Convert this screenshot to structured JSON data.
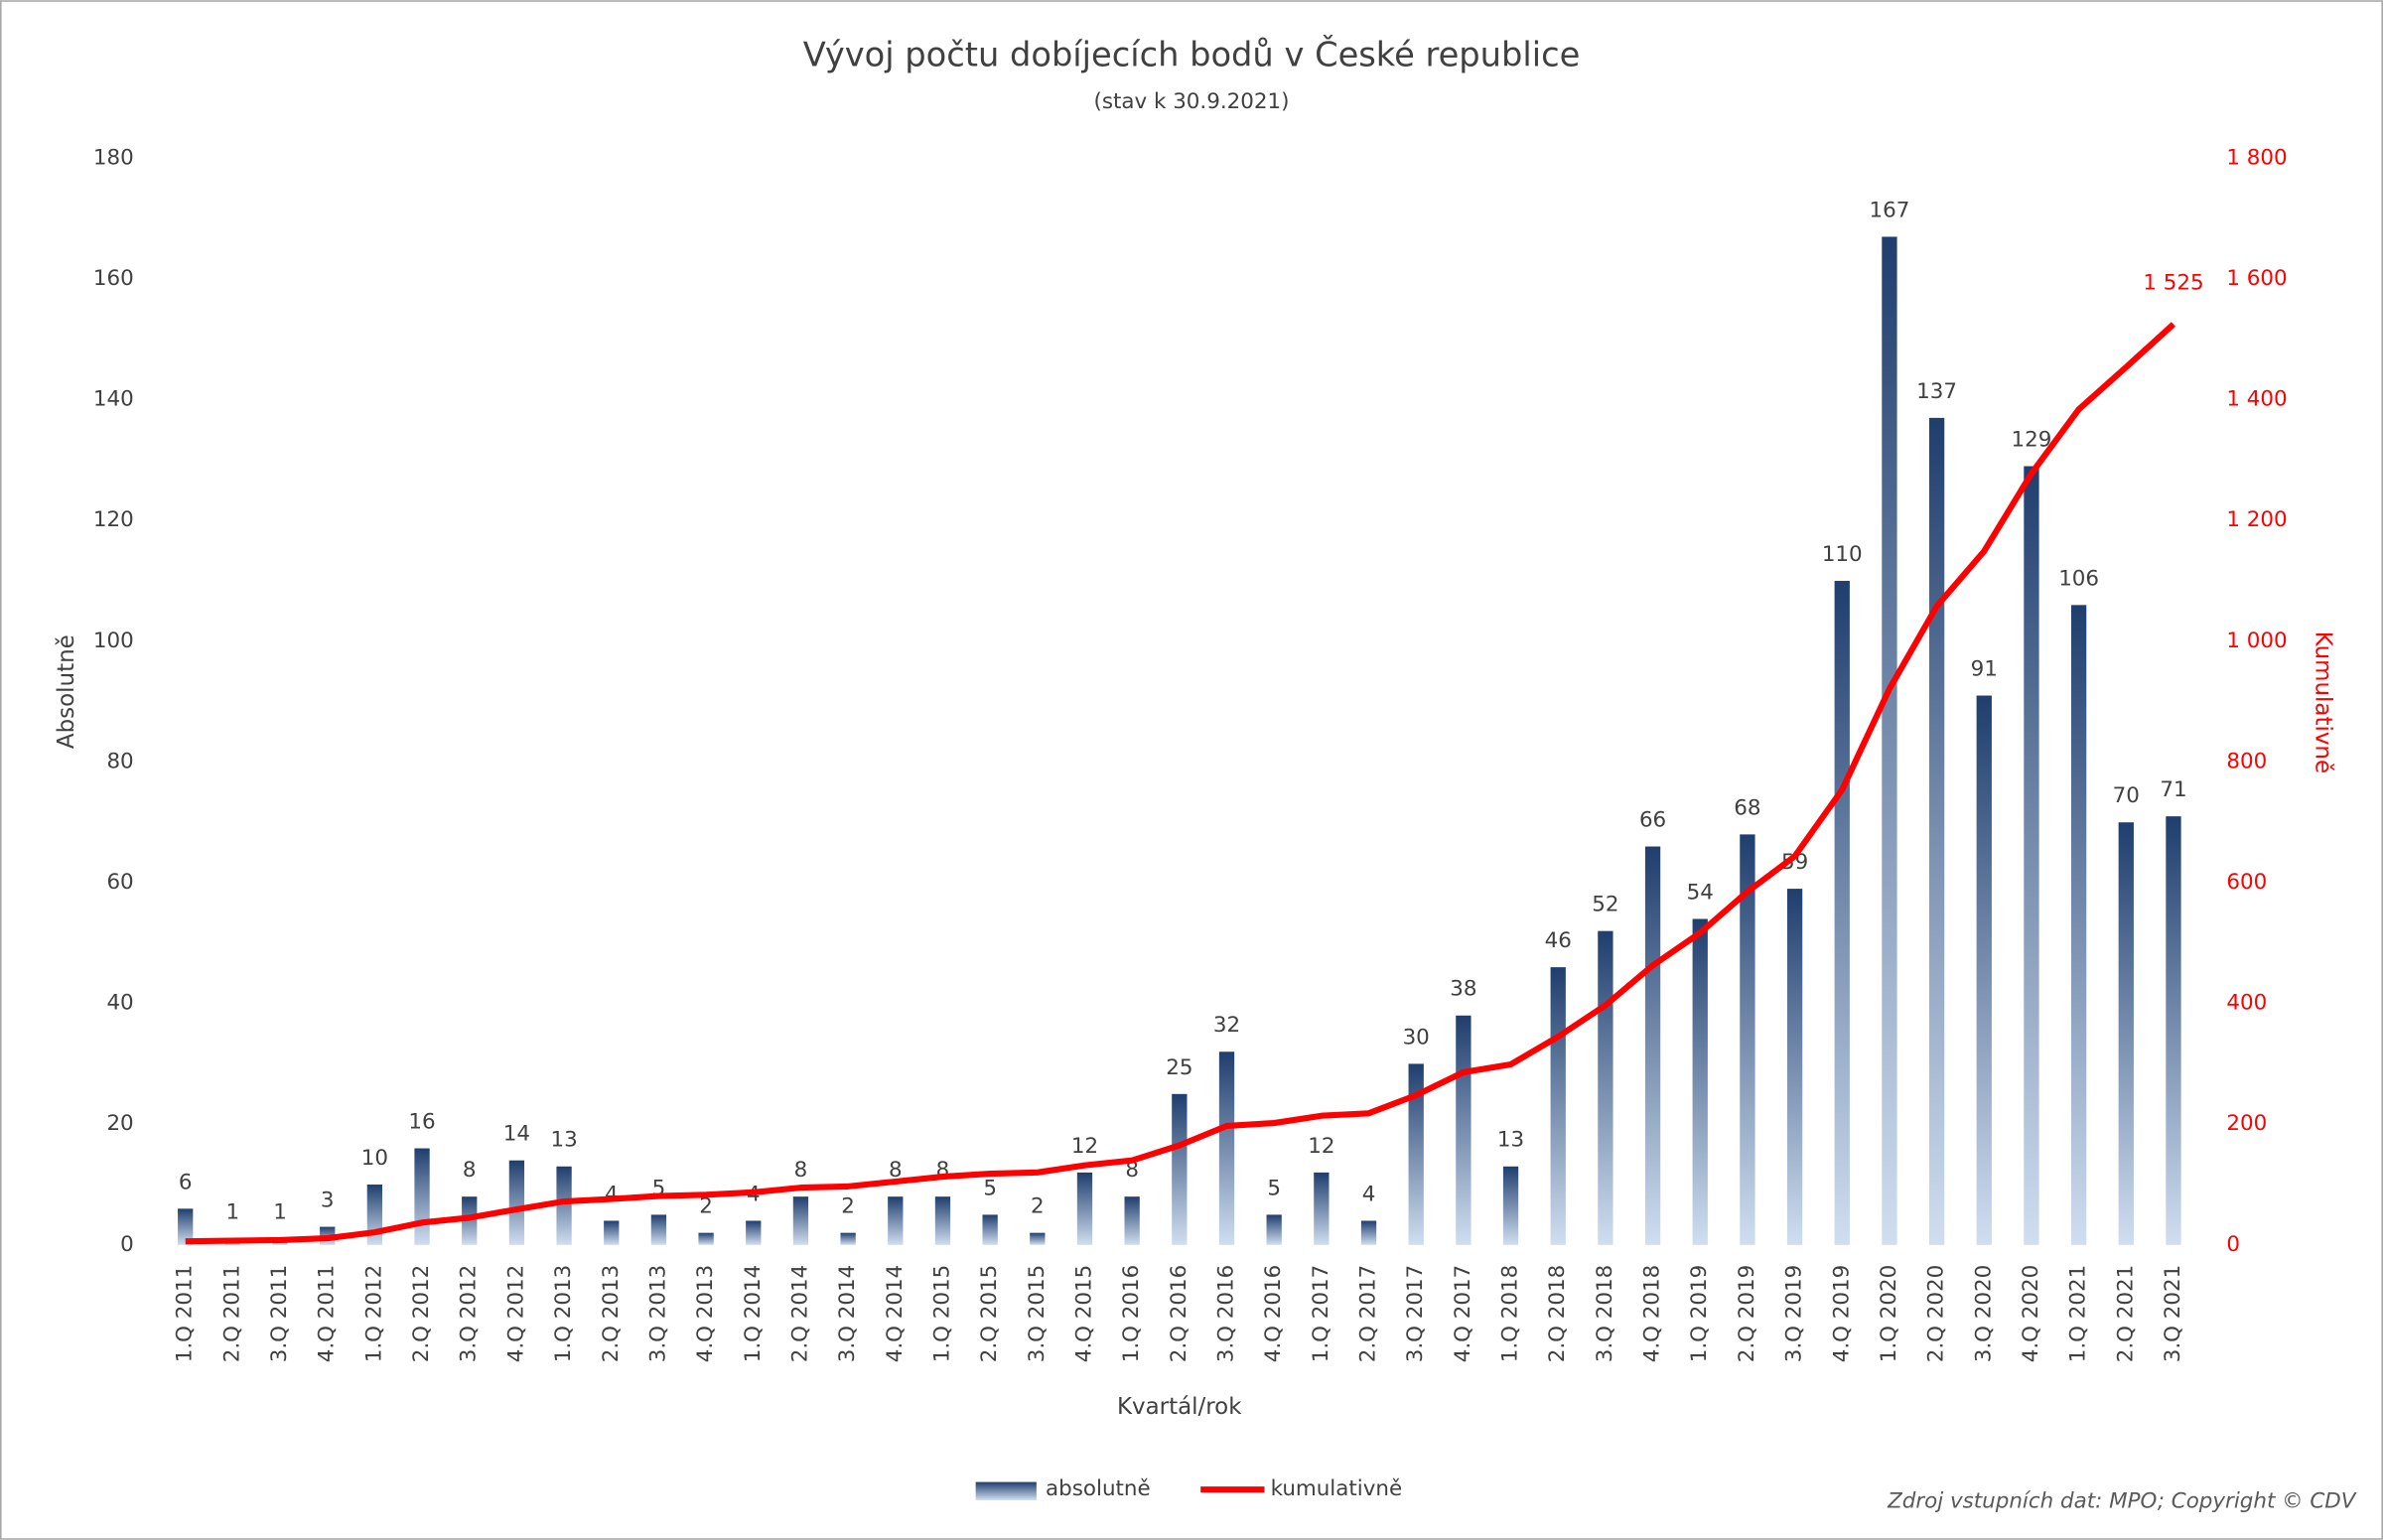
{
  "chart_data": {
    "type": "bar-line",
    "title": "Vývoj počtu dobíjecích bodů v České republice",
    "subtitle": "(stav k 30.9.2021)",
    "x_label": "Kvartál/rok",
    "y_label": "Absolutně",
    "y2_label": "Kumulativně",
    "source": "Zdroj vstupních dat: MPO; Copyright © CDV",
    "categories": [
      "1.Q 2011",
      "2.Q 2011",
      "3.Q 2011",
      "4.Q 2011",
      "1.Q 2012",
      "2.Q 2012",
      "3.Q 2012",
      "4.Q 2012",
      "1.Q 2013",
      "2.Q 2013",
      "3.Q 2013",
      "4.Q 2013",
      "1.Q 2014",
      "2.Q 2014",
      "3.Q 2014",
      "4.Q 2014",
      "1.Q 2015",
      "2.Q 2015",
      "3.Q 2015",
      "4.Q 2015",
      "1.Q 2016",
      "2.Q 2016",
      "3.Q 2016",
      "4.Q 2016",
      "1.Q 2017",
      "2.Q 2017",
      "3.Q 2017",
      "4.Q 2017",
      "1.Q 2018",
      "2.Q 2018",
      "3.Q 2018",
      "4.Q 2018",
      "1.Q 2019",
      "2.Q 2019",
      "3.Q 2019",
      "4.Q 2019",
      "1.Q 2020",
      "2.Q 2020",
      "3.Q 2020",
      "4.Q 2020",
      "1.Q 2021",
      "2.Q 2021",
      "3.Q 2021"
    ],
    "series": [
      {
        "name": "absolutně",
        "color": "#1f3e6e",
        "type": "bar",
        "values": [
          6,
          1,
          1,
          3,
          10,
          16,
          8,
          14,
          13,
          4,
          5,
          2,
          4,
          8,
          2,
          8,
          8,
          5,
          2,
          12,
          8,
          25,
          32,
          5,
          12,
          4,
          30,
          38,
          13,
          46,
          52,
          66,
          54,
          68,
          59,
          110,
          167,
          137,
          91,
          129,
          106,
          70,
          71
        ]
      },
      {
        "name": "kumulativně",
        "color": "#ff0000",
        "type": "line",
        "axis": "y2",
        "values": [
          6,
          7,
          8,
          11,
          21,
          37,
          45,
          59,
          72,
          76,
          81,
          83,
          87,
          95,
          97,
          105,
          113,
          118,
          120,
          132,
          140,
          165,
          197,
          202,
          214,
          218,
          248,
          286,
          299,
          345,
          397,
          463,
          517,
          585,
          644,
          754,
          921,
          1058,
          1149,
          1278,
          1384,
          1454,
          1525
        ],
        "value_labels": [
          null,
          null,
          null,
          null,
          null,
          null,
          null,
          null,
          null,
          null,
          null,
          null,
          null,
          null,
          null,
          null,
          null,
          null,
          null,
          null,
          null,
          null,
          null,
          null,
          null,
          null,
          null,
          null,
          null,
          null,
          null,
          null,
          null,
          null,
          null,
          null,
          null,
          null,
          null,
          null,
          null,
          null,
          "1 525"
        ]
      }
    ],
    "ylim": [
      0,
      180
    ],
    "yticks": [
      0,
      20,
      40,
      60,
      80,
      100,
      120,
      140,
      160,
      180
    ],
    "y2lim": [
      0,
      1800
    ],
    "y2ticks": [
      0,
      200,
      400,
      600,
      800,
      {
        "value": 1000,
        "label": "1 000"
      },
      {
        "value": 1200,
        "label": "1 200"
      },
      {
        "value": 1400,
        "label": "1 400"
      },
      {
        "value": 1600,
        "label": "1 600"
      },
      {
        "value": 1800,
        "label": "1 800"
      }
    ],
    "legend": "bottom"
  }
}
